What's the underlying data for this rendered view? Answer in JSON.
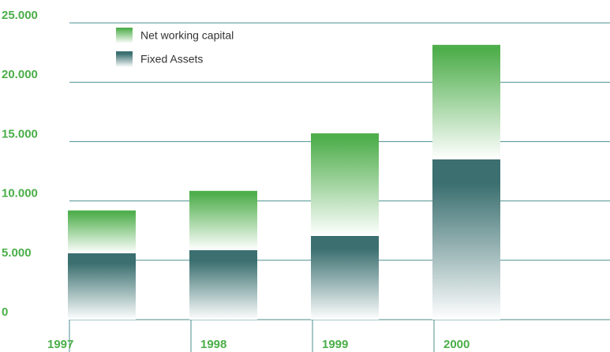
{
  "chart_data": {
    "type": "stacked_bar",
    "categories": [
      "1997",
      "1998",
      "1999",
      "2000"
    ],
    "series": [
      {
        "name": "Fixed Assets",
        "color": "#3b6f70",
        "values": [
          5600,
          5850,
          7050,
          13500
        ]
      },
      {
        "name": "Net working capital",
        "color": "#4fae4c",
        "values": [
          3600,
          5000,
          8650,
          9650
        ]
      }
    ],
    "ylim": [
      0,
      25000
    ],
    "yticks": [
      0,
      {
        "value": 5000,
        "label": "5.000"
      },
      {
        "value": 10000,
        "label": "10.000"
      },
      {
        "value": 15000,
        "label": "15.000"
      },
      {
        "value": 20000,
        "label": "20.000"
      },
      {
        "value": 25000,
        "label": "25.000"
      }
    ],
    "grid": true
  }
}
